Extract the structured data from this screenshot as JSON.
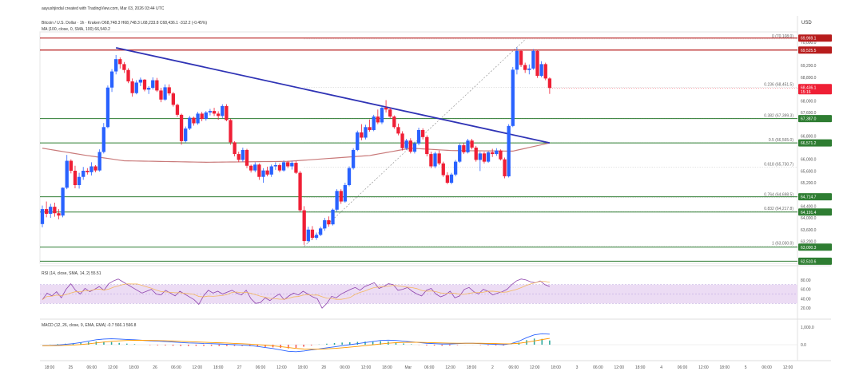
{
  "header": {
    "credit": "aayushjindal created with TradingView.com, Mar 03, 2026 03:44 UTC",
    "symbol_line": "Bitcoin / U.S. Dollar · 1h · Kraken  O68,748.3  H68,748.3  L68,233.8  C68,436.1  -312.2 (-0.45%)",
    "ma_line": "MA (100, close, 0, SMA, 100)  66,540.2",
    "rsi_label": "RSI (14, close, SMA, 14, 2)  55.51",
    "macd_label": "MACD (12, 26, close, 9, EMA, EMA)  -0.7  566.1  566.8"
  },
  "colors": {
    "up": "#2962ff",
    "down": "#ef1f35",
    "trend": "#2f33b5",
    "ma": "#c97a7a",
    "resistance": "#b71c1c",
    "support": "#2e7d32",
    "fib": "#888888",
    "rsi": "#8e44ad",
    "rsi_band": "#ecdcf4",
    "macd": "#2962ff",
    "signal": "#ff9800"
  },
  "chart_data": {
    "type": "candlestick",
    "currency_axis_label": "USD",
    "y_ticks": [
      "70,000.0",
      "69,200.0",
      "68,800.0",
      "68,000.0",
      "67,600.0",
      "66,800.0",
      "66,000.0",
      "65,600.0",
      "65,200.0",
      "64,400.0",
      "64,000.0",
      "63,600.0",
      "63,200.0"
    ],
    "ylim": [
      62450,
      70350
    ],
    "x_labels": [
      "18:00",
      "25",
      "06:00",
      "12:00",
      "18:00",
      "26",
      "06:00",
      "12:00",
      "18:00",
      "27",
      "06:00",
      "12:00",
      "18:00",
      "28",
      "06:00",
      "12:00",
      "18:00",
      "Mar",
      "06:00",
      "12:00",
      "18:00",
      "2",
      "06:00",
      "12:00",
      "18:00",
      "3",
      "06:00",
      "12:00",
      "18:00",
      "4",
      "06:00",
      "12:00",
      "18:00",
      "5",
      "06:00",
      "12:00"
    ],
    "candles": [
      {
        "o": 63790,
        "h": 64420,
        "l": 63680,
        "c": 64300
      },
      {
        "o": 64300,
        "h": 64560,
        "l": 64020,
        "c": 64140
      },
      {
        "o": 64140,
        "h": 64480,
        "l": 64000,
        "c": 64380
      },
      {
        "o": 64380,
        "h": 64520,
        "l": 64040,
        "c": 64160
      },
      {
        "o": 64160,
        "h": 64300,
        "l": 63950,
        "c": 64080
      },
      {
        "o": 64080,
        "h": 65040,
        "l": 64020,
        "c": 65030
      },
      {
        "o": 65030,
        "h": 66150,
        "l": 64980,
        "c": 65950
      },
      {
        "o": 65950,
        "h": 66000,
        "l": 65520,
        "c": 65610
      },
      {
        "o": 65610,
        "h": 65780,
        "l": 65010,
        "c": 65120
      },
      {
        "o": 65120,
        "h": 65540,
        "l": 65000,
        "c": 65400
      },
      {
        "o": 65400,
        "h": 65740,
        "l": 65300,
        "c": 65610
      },
      {
        "o": 65610,
        "h": 65700,
        "l": 65480,
        "c": 65560
      },
      {
        "o": 65560,
        "h": 65900,
        "l": 65450,
        "c": 65760
      },
      {
        "o": 65760,
        "h": 65800,
        "l": 65560,
        "c": 65620
      },
      {
        "o": 65620,
        "h": 66340,
        "l": 65580,
        "c": 66250
      },
      {
        "o": 66250,
        "h": 67240,
        "l": 66200,
        "c": 67100
      },
      {
        "o": 67100,
        "h": 68520,
        "l": 67060,
        "c": 68450
      },
      {
        "o": 68450,
        "h": 69080,
        "l": 68300,
        "c": 69000
      },
      {
        "o": 69000,
        "h": 69560,
        "l": 68900,
        "c": 69420
      },
      {
        "o": 69420,
        "h": 69480,
        "l": 69100,
        "c": 69250
      },
      {
        "o": 69250,
        "h": 69320,
        "l": 68950,
        "c": 69050
      },
      {
        "o": 69050,
        "h": 69110,
        "l": 68600,
        "c": 68660
      },
      {
        "o": 68660,
        "h": 68760,
        "l": 68140,
        "c": 68260
      },
      {
        "o": 68260,
        "h": 68700,
        "l": 68220,
        "c": 68620
      },
      {
        "o": 68620,
        "h": 68790,
        "l": 68500,
        "c": 68720
      },
      {
        "o": 68720,
        "h": 68740,
        "l": 68320,
        "c": 68380
      },
      {
        "o": 68380,
        "h": 68500,
        "l": 68230,
        "c": 68440
      },
      {
        "o": 68440,
        "h": 68800,
        "l": 68380,
        "c": 68700
      },
      {
        "o": 68700,
        "h": 68780,
        "l": 68300,
        "c": 68350
      },
      {
        "o": 68350,
        "h": 68440,
        "l": 67950,
        "c": 68040
      },
      {
        "o": 68040,
        "h": 68560,
        "l": 68000,
        "c": 68460
      },
      {
        "o": 68460,
        "h": 68560,
        "l": 68180,
        "c": 68250
      },
      {
        "o": 68250,
        "h": 68300,
        "l": 67800,
        "c": 67860
      },
      {
        "o": 67860,
        "h": 67900,
        "l": 67450,
        "c": 67520
      },
      {
        "o": 67520,
        "h": 67560,
        "l": 66500,
        "c": 66620
      },
      {
        "o": 66620,
        "h": 67120,
        "l": 66580,
        "c": 67050
      },
      {
        "o": 67050,
        "h": 67480,
        "l": 67000,
        "c": 67420
      },
      {
        "o": 67420,
        "h": 67460,
        "l": 67150,
        "c": 67230
      },
      {
        "o": 67230,
        "h": 67620,
        "l": 67180,
        "c": 67560
      },
      {
        "o": 67560,
        "h": 67620,
        "l": 67300,
        "c": 67380
      },
      {
        "o": 67380,
        "h": 67650,
        "l": 67320,
        "c": 67600
      },
      {
        "o": 67600,
        "h": 67720,
        "l": 67500,
        "c": 67650
      },
      {
        "o": 67650,
        "h": 67760,
        "l": 67480,
        "c": 67560
      },
      {
        "o": 67560,
        "h": 67640,
        "l": 67350,
        "c": 67480
      },
      {
        "o": 67480,
        "h": 67880,
        "l": 67400,
        "c": 67820
      },
      {
        "o": 67820,
        "h": 67880,
        "l": 67300,
        "c": 67340
      },
      {
        "o": 67340,
        "h": 67380,
        "l": 66500,
        "c": 66580
      },
      {
        "o": 66580,
        "h": 66620,
        "l": 66100,
        "c": 66180
      },
      {
        "o": 66180,
        "h": 66260,
        "l": 65900,
        "c": 65980
      },
      {
        "o": 65980,
        "h": 66400,
        "l": 65920,
        "c": 66320
      },
      {
        "o": 66320,
        "h": 66360,
        "l": 65700,
        "c": 65780
      },
      {
        "o": 65780,
        "h": 65820,
        "l": 65550,
        "c": 65620
      },
      {
        "o": 65620,
        "h": 65900,
        "l": 65560,
        "c": 65820
      },
      {
        "o": 65820,
        "h": 65860,
        "l": 65300,
        "c": 65400
      },
      {
        "o": 65400,
        "h": 65700,
        "l": 65200,
        "c": 65620
      },
      {
        "o": 65620,
        "h": 65750,
        "l": 65420,
        "c": 65480
      },
      {
        "o": 65480,
        "h": 65820,
        "l": 65400,
        "c": 65760
      },
      {
        "o": 65760,
        "h": 65900,
        "l": 65640,
        "c": 65800
      },
      {
        "o": 65800,
        "h": 65860,
        "l": 65560,
        "c": 65620
      },
      {
        "o": 65620,
        "h": 65960,
        "l": 65580,
        "c": 65900
      },
      {
        "o": 65900,
        "h": 65950,
        "l": 65700,
        "c": 65760
      },
      {
        "o": 65760,
        "h": 65950,
        "l": 65650,
        "c": 65880
      },
      {
        "o": 65880,
        "h": 65940,
        "l": 65500,
        "c": 65540
      },
      {
        "o": 65540,
        "h": 65600,
        "l": 64200,
        "c": 64260
      },
      {
        "o": 64260,
        "h": 64400,
        "l": 63080,
        "c": 63210
      },
      {
        "o": 63210,
        "h": 63700,
        "l": 63150,
        "c": 63600
      },
      {
        "o": 63600,
        "h": 63720,
        "l": 63250,
        "c": 63320
      },
      {
        "o": 63320,
        "h": 63500,
        "l": 63250,
        "c": 63420
      },
      {
        "o": 63420,
        "h": 63700,
        "l": 63380,
        "c": 63640
      },
      {
        "o": 63640,
        "h": 64000,
        "l": 63560,
        "c": 63920
      },
      {
        "o": 63920,
        "h": 64050,
        "l": 63700,
        "c": 63780
      },
      {
        "o": 63780,
        "h": 64320,
        "l": 63740,
        "c": 64280
      },
      {
        "o": 64280,
        "h": 64980,
        "l": 64220,
        "c": 64920
      },
      {
        "o": 64920,
        "h": 64980,
        "l": 64480,
        "c": 64560
      },
      {
        "o": 64560,
        "h": 65200,
        "l": 64520,
        "c": 65120
      },
      {
        "o": 65120,
        "h": 65760,
        "l": 65080,
        "c": 65700
      },
      {
        "o": 65700,
        "h": 66380,
        "l": 65650,
        "c": 66320
      },
      {
        "o": 66320,
        "h": 66980,
        "l": 66280,
        "c": 66920
      },
      {
        "o": 66920,
        "h": 67200,
        "l": 66650,
        "c": 66740
      },
      {
        "o": 66740,
        "h": 67180,
        "l": 66680,
        "c": 67100
      },
      {
        "o": 67100,
        "h": 67360,
        "l": 66940,
        "c": 67000
      },
      {
        "o": 67000,
        "h": 67520,
        "l": 66960,
        "c": 67460
      },
      {
        "o": 67460,
        "h": 67700,
        "l": 67200,
        "c": 67260
      },
      {
        "o": 67260,
        "h": 67820,
        "l": 67200,
        "c": 67760
      },
      {
        "o": 67760,
        "h": 68020,
        "l": 67600,
        "c": 67700
      },
      {
        "o": 67700,
        "h": 67760,
        "l": 67400,
        "c": 67460
      },
      {
        "o": 67460,
        "h": 67500,
        "l": 67040,
        "c": 67100
      },
      {
        "o": 67100,
        "h": 67220,
        "l": 66820,
        "c": 66880
      },
      {
        "o": 66880,
        "h": 66960,
        "l": 66300,
        "c": 66380
      },
      {
        "o": 66380,
        "h": 66700,
        "l": 66320,
        "c": 66640
      },
      {
        "o": 66640,
        "h": 66720,
        "l": 66200,
        "c": 66260
      },
      {
        "o": 66260,
        "h": 66600,
        "l": 66200,
        "c": 66540
      },
      {
        "o": 66540,
        "h": 67080,
        "l": 66480,
        "c": 67000
      },
      {
        "o": 67000,
        "h": 67060,
        "l": 66680,
        "c": 66760
      },
      {
        "o": 66760,
        "h": 66820,
        "l": 66100,
        "c": 66180
      },
      {
        "o": 66180,
        "h": 66260,
        "l": 65700,
        "c": 65760
      },
      {
        "o": 65760,
        "h": 66260,
        "l": 65700,
        "c": 66200
      },
      {
        "o": 66200,
        "h": 66300,
        "l": 65800,
        "c": 65860
      },
      {
        "o": 65860,
        "h": 65920,
        "l": 65400,
        "c": 65460
      },
      {
        "o": 65460,
        "h": 65560,
        "l": 65150,
        "c": 65200
      },
      {
        "o": 65200,
        "h": 65540,
        "l": 65150,
        "c": 65480
      },
      {
        "o": 65480,
        "h": 65980,
        "l": 65420,
        "c": 65920
      },
      {
        "o": 65920,
        "h": 66540,
        "l": 65880,
        "c": 66480
      },
      {
        "o": 66480,
        "h": 66560,
        "l": 66180,
        "c": 66240
      },
      {
        "o": 66240,
        "h": 66700,
        "l": 66200,
        "c": 66640
      },
      {
        "o": 66640,
        "h": 66700,
        "l": 66340,
        "c": 66400
      },
      {
        "o": 66400,
        "h": 66460,
        "l": 65920,
        "c": 65980
      },
      {
        "o": 65980,
        "h": 66260,
        "l": 65600,
        "c": 66200
      },
      {
        "o": 66200,
        "h": 66260,
        "l": 65860,
        "c": 65920
      },
      {
        "o": 65920,
        "h": 66280,
        "l": 65880,
        "c": 66240
      },
      {
        "o": 66240,
        "h": 66360,
        "l": 66080,
        "c": 66180
      },
      {
        "o": 66180,
        "h": 66380,
        "l": 66120,
        "c": 66300
      },
      {
        "o": 66300,
        "h": 66340,
        "l": 65960,
        "c": 66000
      },
      {
        "o": 66000,
        "h": 66060,
        "l": 65350,
        "c": 65420
      },
      {
        "o": 65420,
        "h": 67200,
        "l": 65380,
        "c": 67140
      },
      {
        "o": 67140,
        "h": 69150,
        "l": 67100,
        "c": 69060
      },
      {
        "o": 69060,
        "h": 69820,
        "l": 68900,
        "c": 69700
      },
      {
        "o": 69700,
        "h": 69740,
        "l": 69150,
        "c": 69220
      },
      {
        "o": 69220,
        "h": 69300,
        "l": 68950,
        "c": 69050
      },
      {
        "o": 69050,
        "h": 69240,
        "l": 68900,
        "c": 69100
      },
      {
        "o": 69100,
        "h": 69760,
        "l": 69060,
        "c": 69700
      },
      {
        "o": 69700,
        "h": 69740,
        "l": 68780,
        "c": 68850
      },
      {
        "o": 68850,
        "h": 69350,
        "l": 68800,
        "c": 69250
      },
      {
        "o": 69250,
        "h": 69300,
        "l": 68700,
        "c": 68760
      },
      {
        "o": 68760,
        "h": 68800,
        "l": 68233.8,
        "c": 68436.1
      }
    ],
    "ma100_knots": [
      [
        0,
        66380
      ],
      [
        10,
        66150
      ],
      [
        20,
        65950
      ],
      [
        40,
        65900
      ],
      [
        60,
        65930
      ],
      [
        80,
        66130
      ],
      [
        90,
        66380
      ],
      [
        100,
        66300
      ],
      [
        115,
        66280
      ],
      [
        124,
        66560
      ]
    ],
    "trendline": {
      "from": [
        18,
        69810
      ],
      "to": [
        124,
        66560
      ]
    },
    "horizontal_levels": [
      {
        "name": "resistance-1",
        "price": 70140,
        "label": "69,969.1",
        "kind": "resistance"
      },
      {
        "name": "resistance-2",
        "price": 69730,
        "label": "69,525.5",
        "kind": "resistance"
      },
      {
        "name": "support-1",
        "price": 67390,
        "label": "67,387.0",
        "kind": "support"
      },
      {
        "name": "support-2",
        "price": 66560,
        "label": "66,571.2",
        "kind": "support"
      },
      {
        "name": "support-3",
        "price": 64720,
        "label": "64,714.7",
        "kind": "support"
      },
      {
        "name": "support-4",
        "price": 64200,
        "label": "64,191.4",
        "kind": "support"
      },
      {
        "name": "support-5",
        "price": 63000,
        "label": "63,000.3",
        "kind": "support"
      },
      {
        "name": "support-6",
        "price": 62520,
        "label": "62,510.6",
        "kind": "support"
      }
    ],
    "current_price": {
      "label": "68,436.1",
      "price": 68436.1,
      "sub": "15:16"
    },
    "fibonacci": {
      "start_index": 64,
      "end_index": 124,
      "levels": [
        {
          "label": "0 (70,108.0)",
          "price": 70108.0
        },
        {
          "label": "0.236 (68,451.5)",
          "price": 68451.5
        },
        {
          "label": "0.382 (67,399.3)",
          "price": 67399.3
        },
        {
          "label": "0.5 (66,565.0)",
          "price": 66565.0
        },
        {
          "label": "0.618 (65,730.7)",
          "price": 65730.7
        },
        {
          "label": "0.764 (64,698.5)",
          "price": 64698.5
        },
        {
          "label": "0.832 (64,217.8)",
          "price": 64217.8
        },
        {
          "label": "1 (63,030.0)",
          "price": 63030.0
        }
      ]
    },
    "rsi": {
      "ticks": [
        "80.00",
        "60.00",
        "40.00",
        "20.00"
      ],
      "band": [
        30,
        70
      ],
      "values": [
        38,
        52,
        46,
        55,
        42,
        60,
        72,
        58,
        50,
        62,
        55,
        60,
        66,
        58,
        72,
        78,
        82,
        76,
        70,
        64,
        58,
        52,
        56,
        60,
        50,
        48,
        58,
        52,
        46,
        56,
        50,
        44,
        38,
        28,
        46,
        58,
        52,
        56,
        50,
        54,
        58,
        52,
        48,
        58,
        40,
        30,
        32,
        42,
        36,
        44,
        50,
        38,
        46,
        52,
        48,
        56,
        50,
        44,
        40,
        20,
        30,
        45,
        42,
        50,
        55,
        60,
        64,
        58,
        66,
        70,
        74,
        62,
        66,
        72,
        70,
        58,
        60,
        64,
        56,
        50,
        46,
        58,
        62,
        50,
        44,
        48,
        56,
        42,
        46,
        60,
        64,
        55,
        50,
        60,
        56,
        48,
        52,
        55,
        60,
        70,
        78,
        82,
        80,
        76,
        74,
        78,
        70,
        66
      ]
    },
    "macd": {
      "ticks": [
        "1,000.0",
        "0.0"
      ],
      "macd": [
        -60,
        -50,
        -20,
        20,
        60,
        120,
        200,
        280,
        320,
        340,
        320,
        300,
        280,
        250,
        220,
        200,
        180,
        150,
        120,
        100,
        90,
        70,
        60,
        40,
        20,
        0,
        -20,
        -50,
        -100,
        -160,
        -220,
        -300,
        -380,
        -400,
        -360,
        -300,
        -240,
        -180,
        -120,
        -60,
        0,
        60,
        120,
        180,
        240,
        260,
        240,
        200,
        160,
        120,
        80,
        60,
        40,
        40,
        60,
        80,
        80,
        60,
        40,
        20,
        0,
        60,
        200,
        400,
        560,
        620,
        600
      ],
      "signal": [
        -60,
        -58,
        -50,
        -36,
        -18,
        10,
        50,
        100,
        150,
        190,
        220,
        240,
        250,
        250,
        244,
        236,
        224,
        210,
        192,
        174,
        158,
        140,
        124,
        108,
        92,
        72,
        52,
        30,
        4,
        -28,
        -66,
        -112,
        -164,
        -212,
        -244,
        -256,
        -252,
        -236,
        -212,
        -180,
        -140,
        -98,
        -54,
        -6,
        42,
        84,
        114,
        130,
        136,
        132,
        122,
        110,
        98,
        88,
        84,
        84,
        84,
        80,
        72,
        62,
        48,
        52,
        80,
        140,
        212,
        290,
        360
      ]
    }
  }
}
